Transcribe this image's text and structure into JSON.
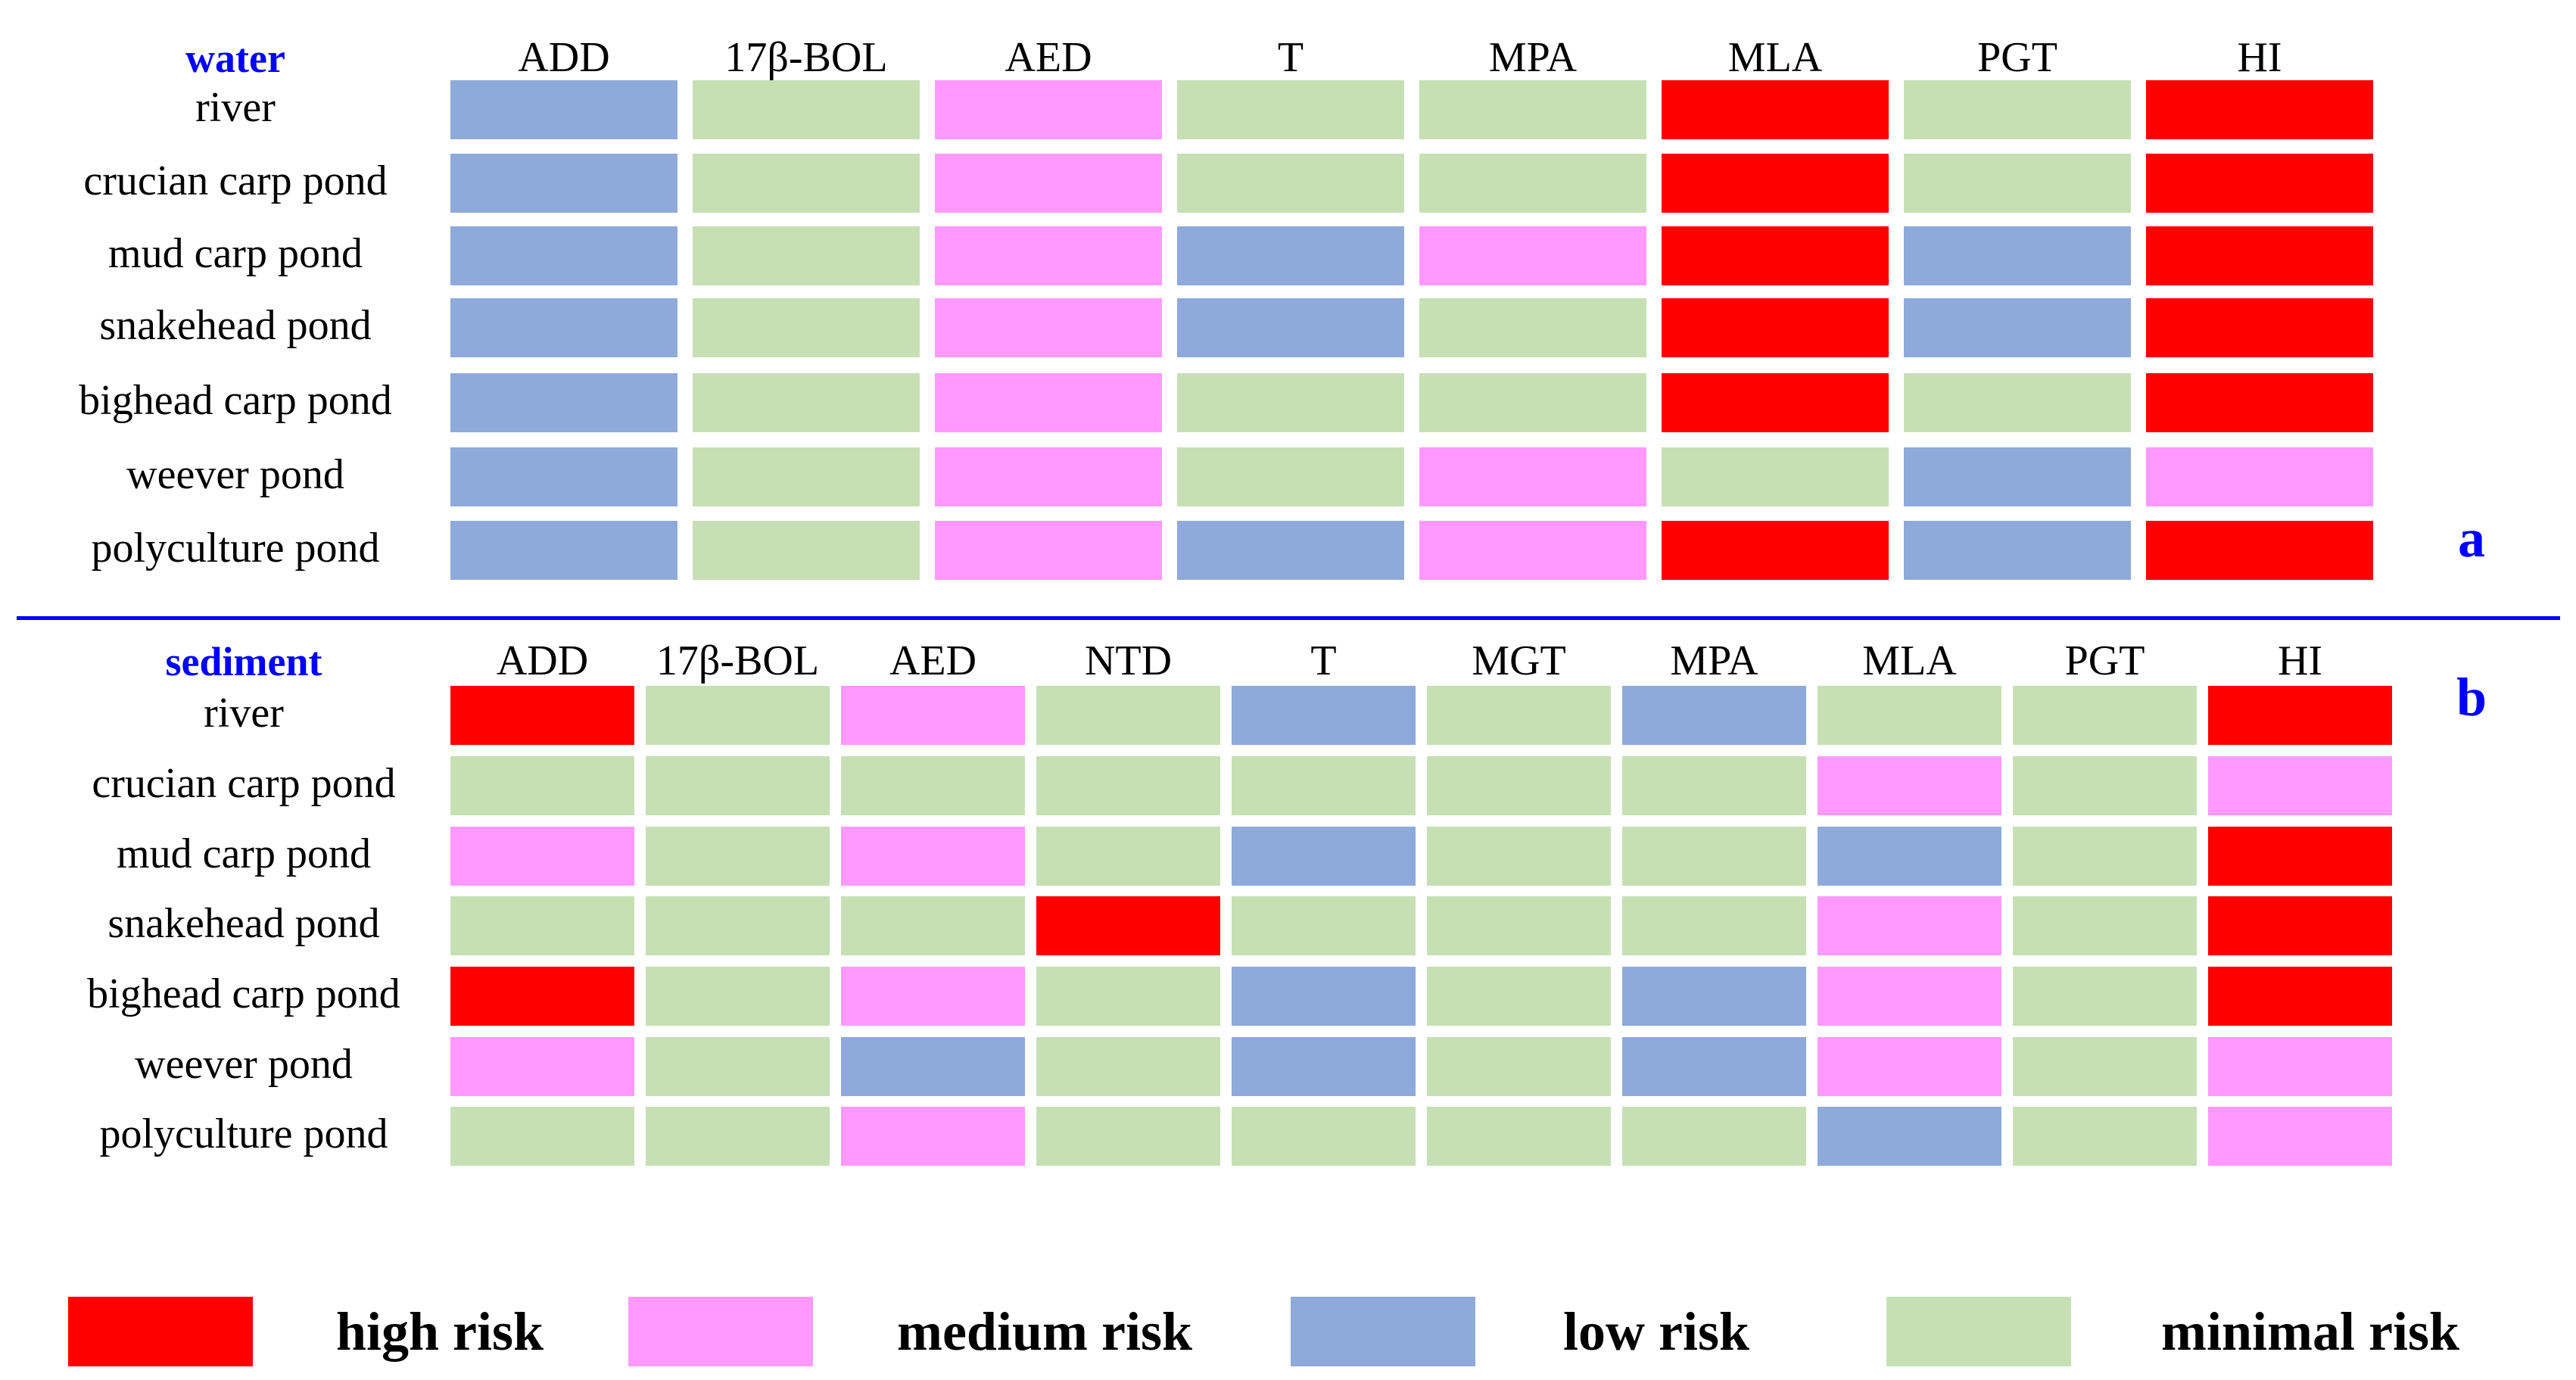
{
  "colors": {
    "high": "#ff0000",
    "medium": "#ff99ff",
    "low": "#8eaadb",
    "minimal": "#c6e0b4",
    "panel_text": "#0000ff",
    "divider": "#0000ff"
  },
  "chart_data": [
    {
      "type": "heatmap",
      "panel_label": "a",
      "title": "water",
      "columns": [
        "ADD",
        "17β-BOL",
        "AED",
        "T",
        "MPA",
        "MLA",
        "PGT",
        "HI"
      ],
      "rows": [
        "river",
        "crucian carp pond",
        "mud carp pond",
        "snakehead pond",
        "bighead carp pond",
        "weever pond",
        "polyculture pond"
      ],
      "values": [
        [
          "low",
          "minimal",
          "medium",
          "minimal",
          "minimal",
          "high",
          "minimal",
          "high"
        ],
        [
          "low",
          "minimal",
          "medium",
          "minimal",
          "minimal",
          "high",
          "minimal",
          "high"
        ],
        [
          "low",
          "minimal",
          "medium",
          "low",
          "medium",
          "high",
          "low",
          "high"
        ],
        [
          "low",
          "minimal",
          "medium",
          "low",
          "minimal",
          "high",
          "low",
          "high"
        ],
        [
          "low",
          "minimal",
          "medium",
          "minimal",
          "minimal",
          "high",
          "minimal",
          "high"
        ],
        [
          "low",
          "minimal",
          "medium",
          "minimal",
          "medium",
          "minimal",
          "low",
          "medium"
        ],
        [
          "low",
          "minimal",
          "medium",
          "low",
          "medium",
          "high",
          "low",
          "high"
        ]
      ]
    },
    {
      "type": "heatmap",
      "panel_label": "b",
      "title": "sediment",
      "columns": [
        "ADD",
        "17β-BOL",
        "AED",
        "NTD",
        "T",
        "MGT",
        "MPA",
        "MLA",
        "PGT",
        "HI"
      ],
      "rows": [
        "river",
        "crucian carp pond",
        "mud carp pond",
        "snakehead pond",
        "bighead carp pond",
        "weever pond",
        "polyculture pond"
      ],
      "values": [
        [
          "high",
          "minimal",
          "medium",
          "minimal",
          "low",
          "minimal",
          "low",
          "minimal",
          "minimal",
          "high"
        ],
        [
          "minimal",
          "minimal",
          "minimal",
          "minimal",
          "minimal",
          "minimal",
          "minimal",
          "medium",
          "minimal",
          "medium"
        ],
        [
          "medium",
          "minimal",
          "medium",
          "minimal",
          "low",
          "minimal",
          "minimal",
          "low",
          "minimal",
          "high"
        ],
        [
          "minimal",
          "minimal",
          "minimal",
          "high",
          "minimal",
          "minimal",
          "minimal",
          "medium",
          "minimal",
          "high"
        ],
        [
          "high",
          "minimal",
          "medium",
          "minimal",
          "low",
          "minimal",
          "low",
          "medium",
          "minimal",
          "high"
        ],
        [
          "medium",
          "minimal",
          "low",
          "minimal",
          "low",
          "minimal",
          "low",
          "medium",
          "minimal",
          "medium"
        ],
        [
          "minimal",
          "minimal",
          "medium",
          "minimal",
          "minimal",
          "minimal",
          "minimal",
          "low",
          "minimal",
          "medium"
        ]
      ]
    }
  ],
  "legend": [
    {
      "key": "high",
      "label": "high risk"
    },
    {
      "key": "medium",
      "label": "medium risk"
    },
    {
      "key": "low",
      "label": "low risk"
    },
    {
      "key": "minimal",
      "label": "minimal risk"
    }
  ]
}
